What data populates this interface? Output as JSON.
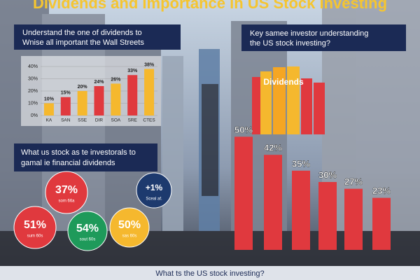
{
  "title": "Dividends and Importance in US Stock Investing",
  "top_left_heading": [
    "Understand the one of dividends to",
    "Wnise all important the Wall Streets"
  ],
  "top_right_heading": [
    "Key samee investor understanding",
    "the US stock investing?"
  ],
  "growth_chart": {
    "type": "bar",
    "categories": [
      "KA",
      "SAN",
      "SSE",
      "DIR",
      "SOA",
      "SRE",
      "CTES"
    ],
    "values": [
      10,
      15,
      20,
      24,
      26,
      33,
      38
    ],
    "value_labels": [
      "10%",
      "15%",
      "20%",
      "24%",
      "26%",
      "33%",
      "38%"
    ],
    "colors": [
      "#f5b82e",
      "#e0393e",
      "#f5b82e",
      "#e0393e",
      "#f5b82e",
      "#e0393e",
      "#f5b82e"
    ],
    "ylim": [
      0,
      40
    ],
    "yticks": [
      {
        "value": 0,
        "label": "0%"
      },
      {
        "value": 10,
        "label": "10%"
      },
      {
        "value": 20,
        "label": "20%"
      },
      {
        "value": 30,
        "label": "30%"
      },
      {
        "value": 40,
        "label": "40%"
      }
    ]
  },
  "dividend_chart": {
    "type": "bar",
    "label": "Dividends",
    "color": "#e0393e",
    "values": [
      50,
      42,
      35,
      30,
      27,
      23
    ],
    "value_labels": [
      "50%",
      "42%",
      "35%",
      "30%",
      "27%",
      "23%"
    ],
    "ylim": [
      0,
      60
    ]
  },
  "middle_heading": [
    "What us stock as te investorals to",
    "gamal ie financial dividends"
  ],
  "circles": [
    {
      "label": "37%",
      "note": "som 66a",
      "color": "#e0393e"
    },
    {
      "label": "51%",
      "note": "sum 60s",
      "color": "#e0393e"
    },
    {
      "label": "54%",
      "note": "sout 60s",
      "color": "#1e9a5a"
    },
    {
      "label": "50%",
      "note": "sas 60s",
      "color": "#f5b82e"
    },
    {
      "label": "+1%",
      "note": "Sceal af.",
      "color": "#1d3a6e"
    }
  ],
  "bottom_caption": "What ts the US stock investing?"
}
